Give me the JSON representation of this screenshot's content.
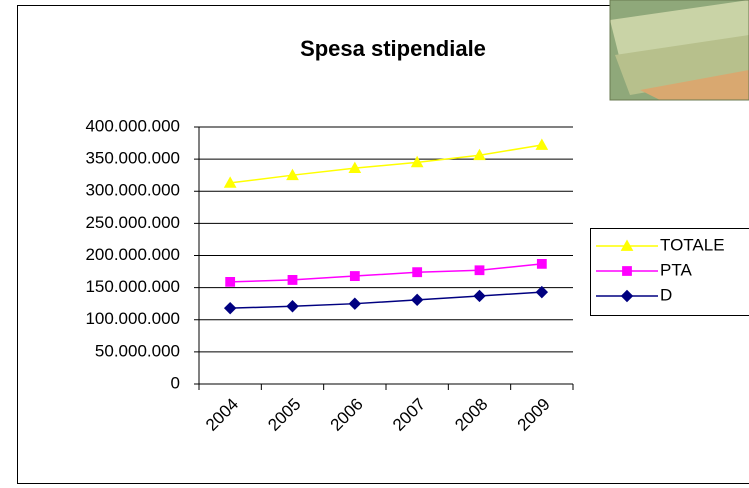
{
  "chart_data": {
    "type": "line",
    "title": "Spesa stipendiale",
    "categories": [
      "2004",
      "2005",
      "2006",
      "2007",
      "2008",
      "2009"
    ],
    "series": [
      {
        "name": "TOTALE",
        "color": "#ffff00",
        "marker": "triangle",
        "values": [
          313000000,
          325000000,
          336000000,
          345000000,
          356000000,
          372000000
        ]
      },
      {
        "name": "PTA",
        "color": "#ff00ff",
        "marker": "square",
        "values": [
          159000000,
          162000000,
          168000000,
          174000000,
          177000000,
          187000000
        ]
      },
      {
        "name": "D",
        "color": "#000080",
        "marker": "diamond",
        "values": [
          118000000,
          121000000,
          125000000,
          131000000,
          137000000,
          143000000
        ]
      }
    ],
    "ylim": [
      0,
      400000000
    ],
    "yticks": [
      0,
      {
        "value": 50000000,
        "label": "50.000.000"
      },
      {
        "value": 100000000,
        "label": "100.000.000"
      },
      {
        "value": 150000000,
        "label": "150.000.000"
      },
      {
        "value": 200000000,
        "label": "200.000.000"
      },
      {
        "value": 250000000,
        "label": "250.000.000"
      },
      {
        "value": 300000000,
        "label": "300.000.000"
      },
      {
        "value": 350000000,
        "label": "350.000.000"
      },
      {
        "value": 400000000,
        "label": "400.000.000"
      }
    ],
    "grid": true,
    "legend": "right"
  }
}
